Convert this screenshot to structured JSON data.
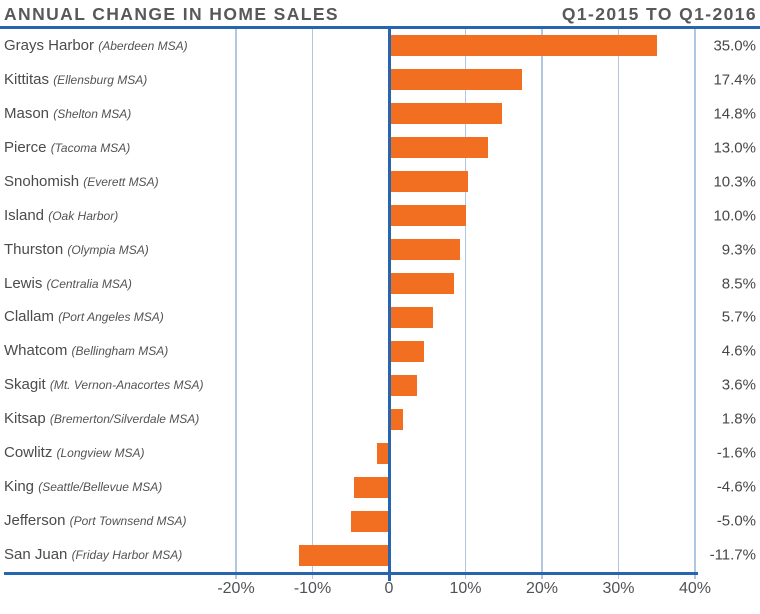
{
  "header": {
    "title_left": "ANNUAL CHANGE IN HOME SALES",
    "title_right": "Q1-2015 TO Q1-2016"
  },
  "colors": {
    "bar": "#F26E21",
    "axis_navy": "#2765AE",
    "gridline_light": "#B0C7DF",
    "title_text": "#57585A",
    "label_text": "#4A4B4D"
  },
  "chart_data": {
    "type": "bar",
    "orientation": "horizontal",
    "title": "ANNUAL CHANGE IN HOME SALES",
    "subtitle": "Q1-2015 TO Q1-2016",
    "categories": [
      "Grays Harbor",
      "Kittitas",
      "Mason",
      "Pierce",
      "Snohomish",
      "Island",
      "Thurston",
      "Lewis",
      "Clallam",
      "Whatcom",
      "Skagit",
      "Kitsap",
      "Cowlitz",
      "King",
      "Jefferson",
      "San Juan"
    ],
    "category_notes": [
      "(Aberdeen MSA)",
      "(Ellensburg MSA)",
      "(Shelton MSA)",
      "(Tacoma MSA)",
      "(Everett MSA)",
      "(Oak Harbor)",
      "(Olympia MSA)",
      "(Centralia MSA)",
      "(Port Angeles MSA)",
      "(Bellingham MSA)",
      "(Mt. Vernon-Anacortes MSA)",
      "(Bremerton/Silverdale MSA)",
      "(Longview MSA)",
      "(Seattle/Bellevue MSA)",
      "(Port Townsend MSA)",
      "(Friday Harbor MSA)"
    ],
    "values": [
      35.0,
      17.4,
      14.8,
      13.0,
      10.3,
      10.0,
      9.3,
      8.5,
      5.7,
      4.6,
      3.6,
      1.8,
      -1.6,
      -4.6,
      -5.0,
      -11.7
    ],
    "value_labels": [
      "35.0%",
      "17.4%",
      "14.8%",
      "13.0%",
      "10.3%",
      "10.0%",
      "9.3%",
      "8.5%",
      "5.7%",
      "4.6%",
      "3.6%",
      "1.8%",
      "-1.6%",
      "-4.6%",
      "-5.0%",
      "-11.7%"
    ],
    "x_ticks": {
      "values": [
        -20,
        -10,
        0,
        10,
        20,
        30,
        40
      ],
      "labels": [
        "-20%",
        "-10%",
        "0",
        "10%",
        "20%",
        "30%",
        "40%"
      ]
    },
    "xlim": [
      -20,
      40
    ],
    "grid": true,
    "legend": false
  }
}
